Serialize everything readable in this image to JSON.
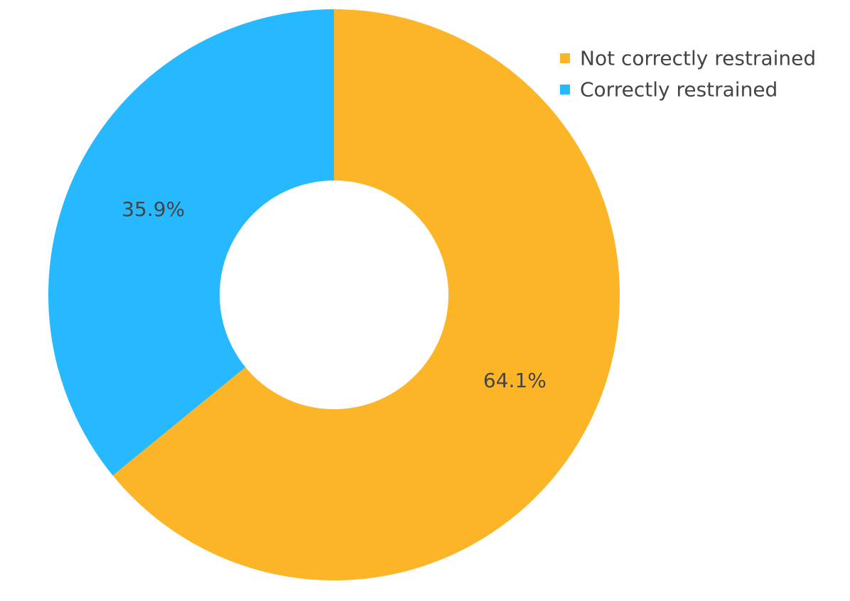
{
  "chart_data": {
    "type": "pie",
    "hole": true,
    "legend_position": "top-right",
    "slices": [
      {
        "label": "Not correctly restrained",
        "value": 64.1,
        "display": "64.1%",
        "color": "#FDB528"
      },
      {
        "label": "Correctly restrained",
        "value": 35.9,
        "display": "35.9%",
        "color": "#26B9FF"
      }
    ]
  }
}
